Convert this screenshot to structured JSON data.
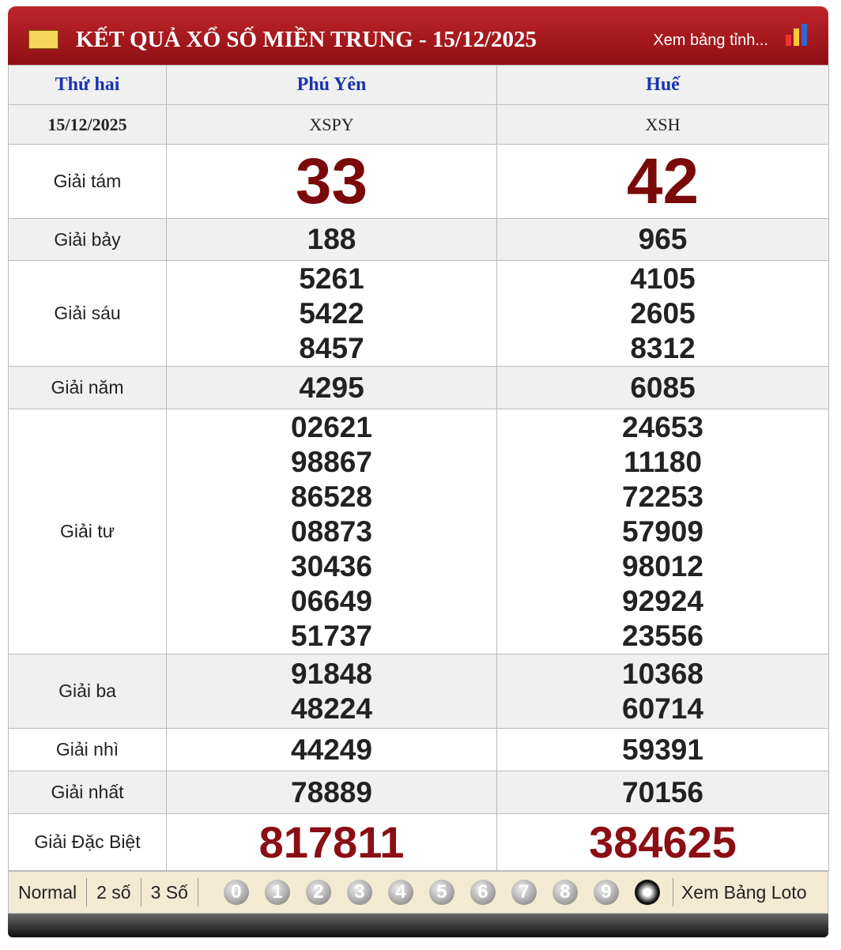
{
  "header": {
    "title": "KẾT QUẢ XỔ SỐ MIỀN TRUNG - 15/12/2025",
    "link": "Xem bảng tỉnh..."
  },
  "table": {
    "columns": [
      "Thứ hai",
      "Phú Yên",
      "Huế"
    ],
    "subheader": [
      "15/12/2025",
      "XSPY",
      "XSH"
    ],
    "rows": [
      {
        "label": "Giải tám",
        "values": [
          [
            "33"
          ],
          [
            "42"
          ]
        ]
      },
      {
        "label": "Giải bảy",
        "values": [
          [
            "188"
          ],
          [
            "965"
          ]
        ]
      },
      {
        "label": "Giải sáu",
        "values": [
          [
            "5261",
            "5422",
            "8457"
          ],
          [
            "4105",
            "2605",
            "8312"
          ]
        ]
      },
      {
        "label": "Giải năm",
        "values": [
          [
            "4295"
          ],
          [
            "6085"
          ]
        ]
      },
      {
        "label": "Giải tư",
        "values": [
          [
            "02621",
            "98867",
            "86528",
            "08873",
            "30436",
            "06649",
            "51737"
          ],
          [
            "24653",
            "11180",
            "72253",
            "57909",
            "98012",
            "92924",
            "23556"
          ]
        ]
      },
      {
        "label": "Giải ba",
        "values": [
          [
            "91848",
            "48224"
          ],
          [
            "10368",
            "60714"
          ]
        ]
      },
      {
        "label": "Giải nhì",
        "values": [
          [
            "44249"
          ],
          [
            "59391"
          ]
        ]
      },
      {
        "label": "Giải nhất",
        "values": [
          [
            "78889"
          ],
          [
            "70156"
          ]
        ]
      },
      {
        "label": "Giải Đặc Biệt",
        "values": [
          [
            "817811"
          ],
          [
            "384625"
          ]
        ]
      }
    ]
  },
  "footer": {
    "modes": [
      "Normal",
      "2 số",
      "3 Số"
    ],
    "digits": [
      "0",
      "1",
      "2",
      "3",
      "4",
      "5",
      "6",
      "7",
      "8",
      "9"
    ],
    "link": "Xem Bảng Loto"
  }
}
